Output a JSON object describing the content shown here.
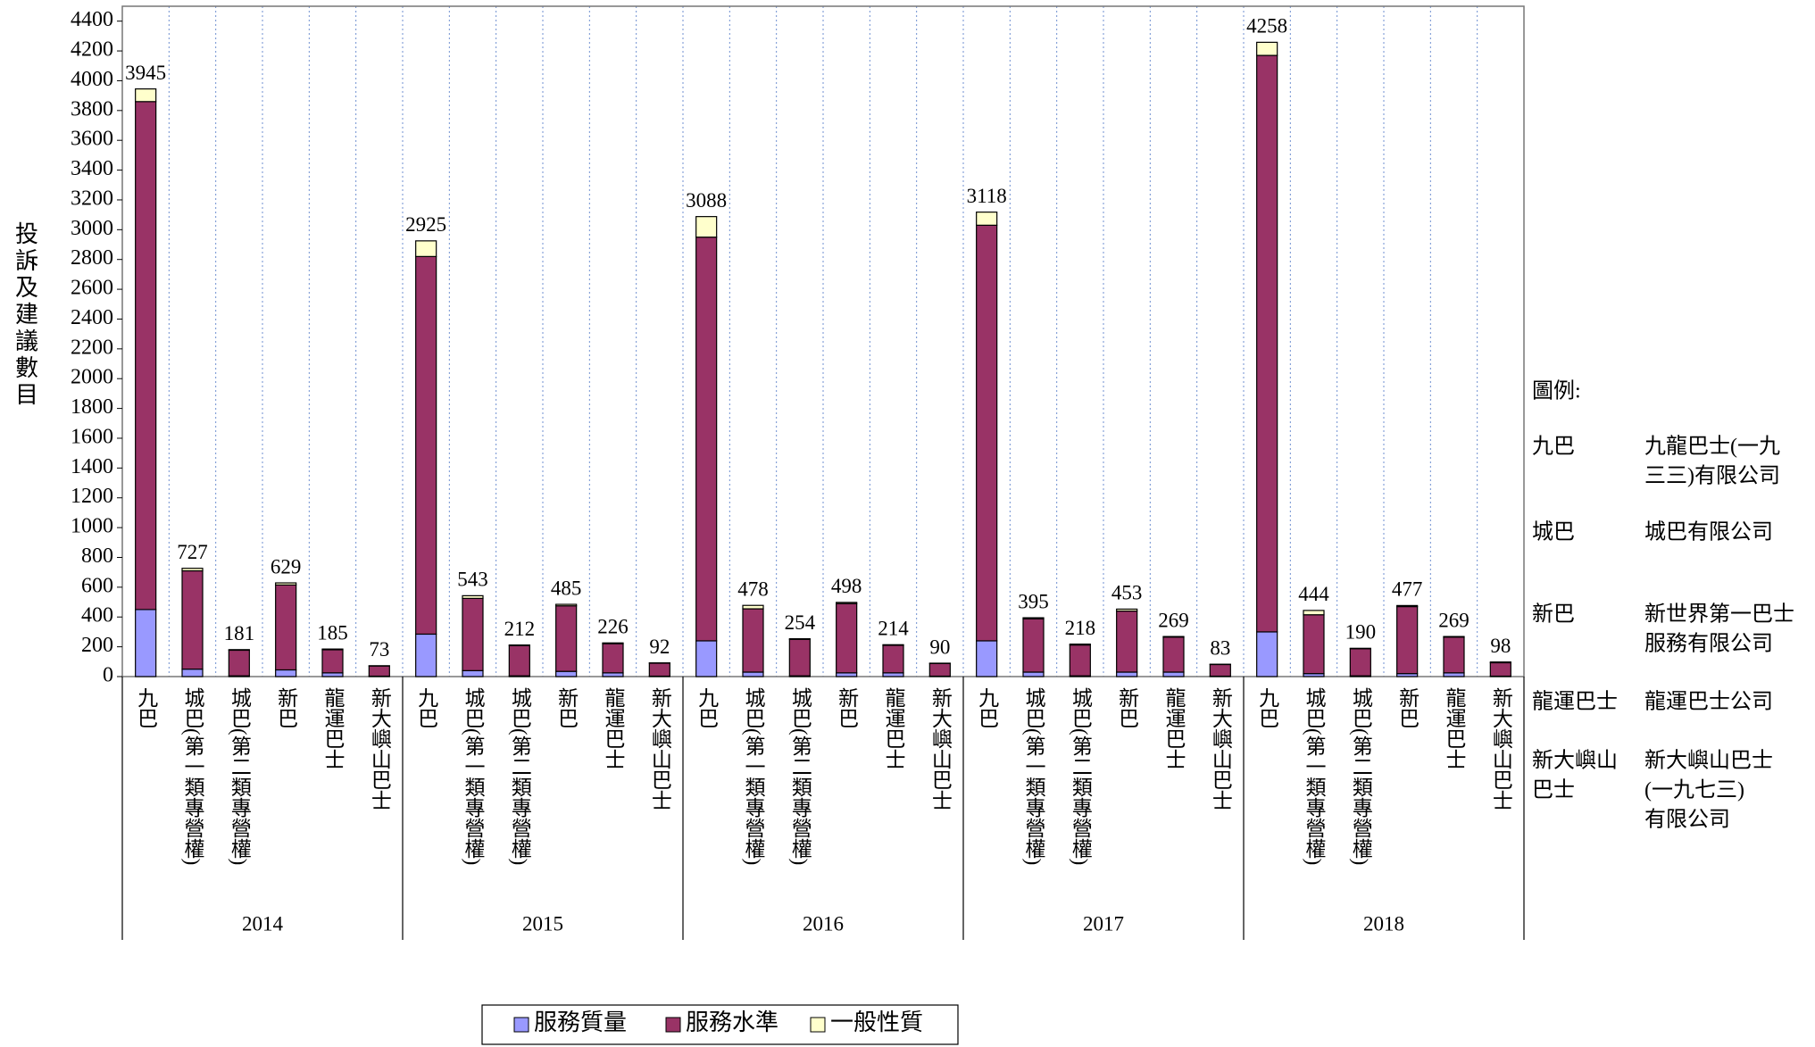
{
  "chart_data": {
    "type": "stacked_bar",
    "y_label": "投訴及建議數目",
    "groups": [
      "2014",
      "2015",
      "2016",
      "2017",
      "2018"
    ],
    "categories": [
      "九巴",
      "城巴(第一類專營權)",
      "城巴(第二類專營權)",
      "新巴",
      "龍運巴士",
      "新大嶼山巴士",
      "九巴",
      "城巴(第一類專營權)",
      "城巴(第二類專營權)",
      "新巴",
      "龍運巴士",
      "新大嶼山巴士",
      "九巴",
      "城巴(第一類專營權)",
      "城巴(第二類專營權)",
      "新巴",
      "龍運巴士",
      "新大嶼山巴士",
      "九巴",
      "城巴(第一類專營權)",
      "城巴(第二類專營權)",
      "新巴",
      "龍運巴士",
      "新大嶼山巴士",
      "九巴",
      "城巴(第一類專營權)",
      "城巴(第二類專營權)",
      "新巴",
      "龍運巴士",
      "新大嶼山巴士"
    ],
    "series": [
      {
        "name": "服務質量",
        "color": "#9999ff",
        "values": [
          450,
          50,
          5,
          45,
          25,
          3,
          285,
          40,
          5,
          35,
          25,
          3,
          240,
          30,
          5,
          25,
          25,
          3,
          240,
          30,
          5,
          30,
          30,
          3,
          300,
          20,
          5,
          20,
          25,
          3
        ]
      },
      {
        "name": "服務水準",
        "color": "#993366",
        "values": [
          3410,
          660,
          172,
          570,
          155,
          68,
          2535,
          485,
          203,
          440,
          196,
          87,
          2710,
          425,
          245,
          465,
          185,
          85,
          2790,
          358,
          207,
          410,
          235,
          78,
          3870,
          395,
          182,
          450,
          240,
          90
        ]
      },
      {
        "name": "一般性質",
        "color": "#ffffcc",
        "values": [
          85,
          17,
          4,
          14,
          5,
          2,
          105,
          18,
          4,
          10,
          5,
          2,
          138,
          23,
          4,
          8,
          4,
          2,
          88,
          7,
          6,
          13,
          4,
          2,
          88,
          29,
          3,
          7,
          4,
          5
        ]
      }
    ],
    "totals": [
      3945,
      727,
      181,
      629,
      185,
      73,
      2925,
      543,
      212,
      485,
      226,
      92,
      3088,
      478,
      254,
      498,
      214,
      90,
      3118,
      395,
      218,
      453,
      269,
      83,
      4258,
      444,
      190,
      477,
      269,
      98
    ],
    "ylim": [
      0,
      4500
    ],
    "yticks": [
      0,
      200,
      400,
      600,
      800,
      1000,
      1200,
      1400,
      1600,
      1800,
      2000,
      2200,
      2400,
      2600,
      2800,
      3000,
      3200,
      3400,
      3600,
      3800,
      4000,
      4200,
      4400
    ],
    "grid": true,
    "notes": {
      "title": "圖例:",
      "items": [
        {
          "abbr": [
            "九巴"
          ],
          "full": [
            "九龍巴士(一九",
            "三三)有限公司"
          ]
        },
        {
          "abbr": [
            "城巴"
          ],
          "full": [
            "城巴有限公司"
          ]
        },
        {
          "abbr": [
            "新巴"
          ],
          "full": [
            "新世界第一巴士",
            "服務有限公司"
          ]
        },
        {
          "abbr": [
            "龍運巴士"
          ],
          "full": [
            "龍運巴士公司"
          ]
        },
        {
          "abbr": [
            "新大嶼山",
            "巴士"
          ],
          "full": [
            "新大嶼山巴士",
            "(一九七三)",
            "有限公司"
          ]
        }
      ]
    }
  }
}
